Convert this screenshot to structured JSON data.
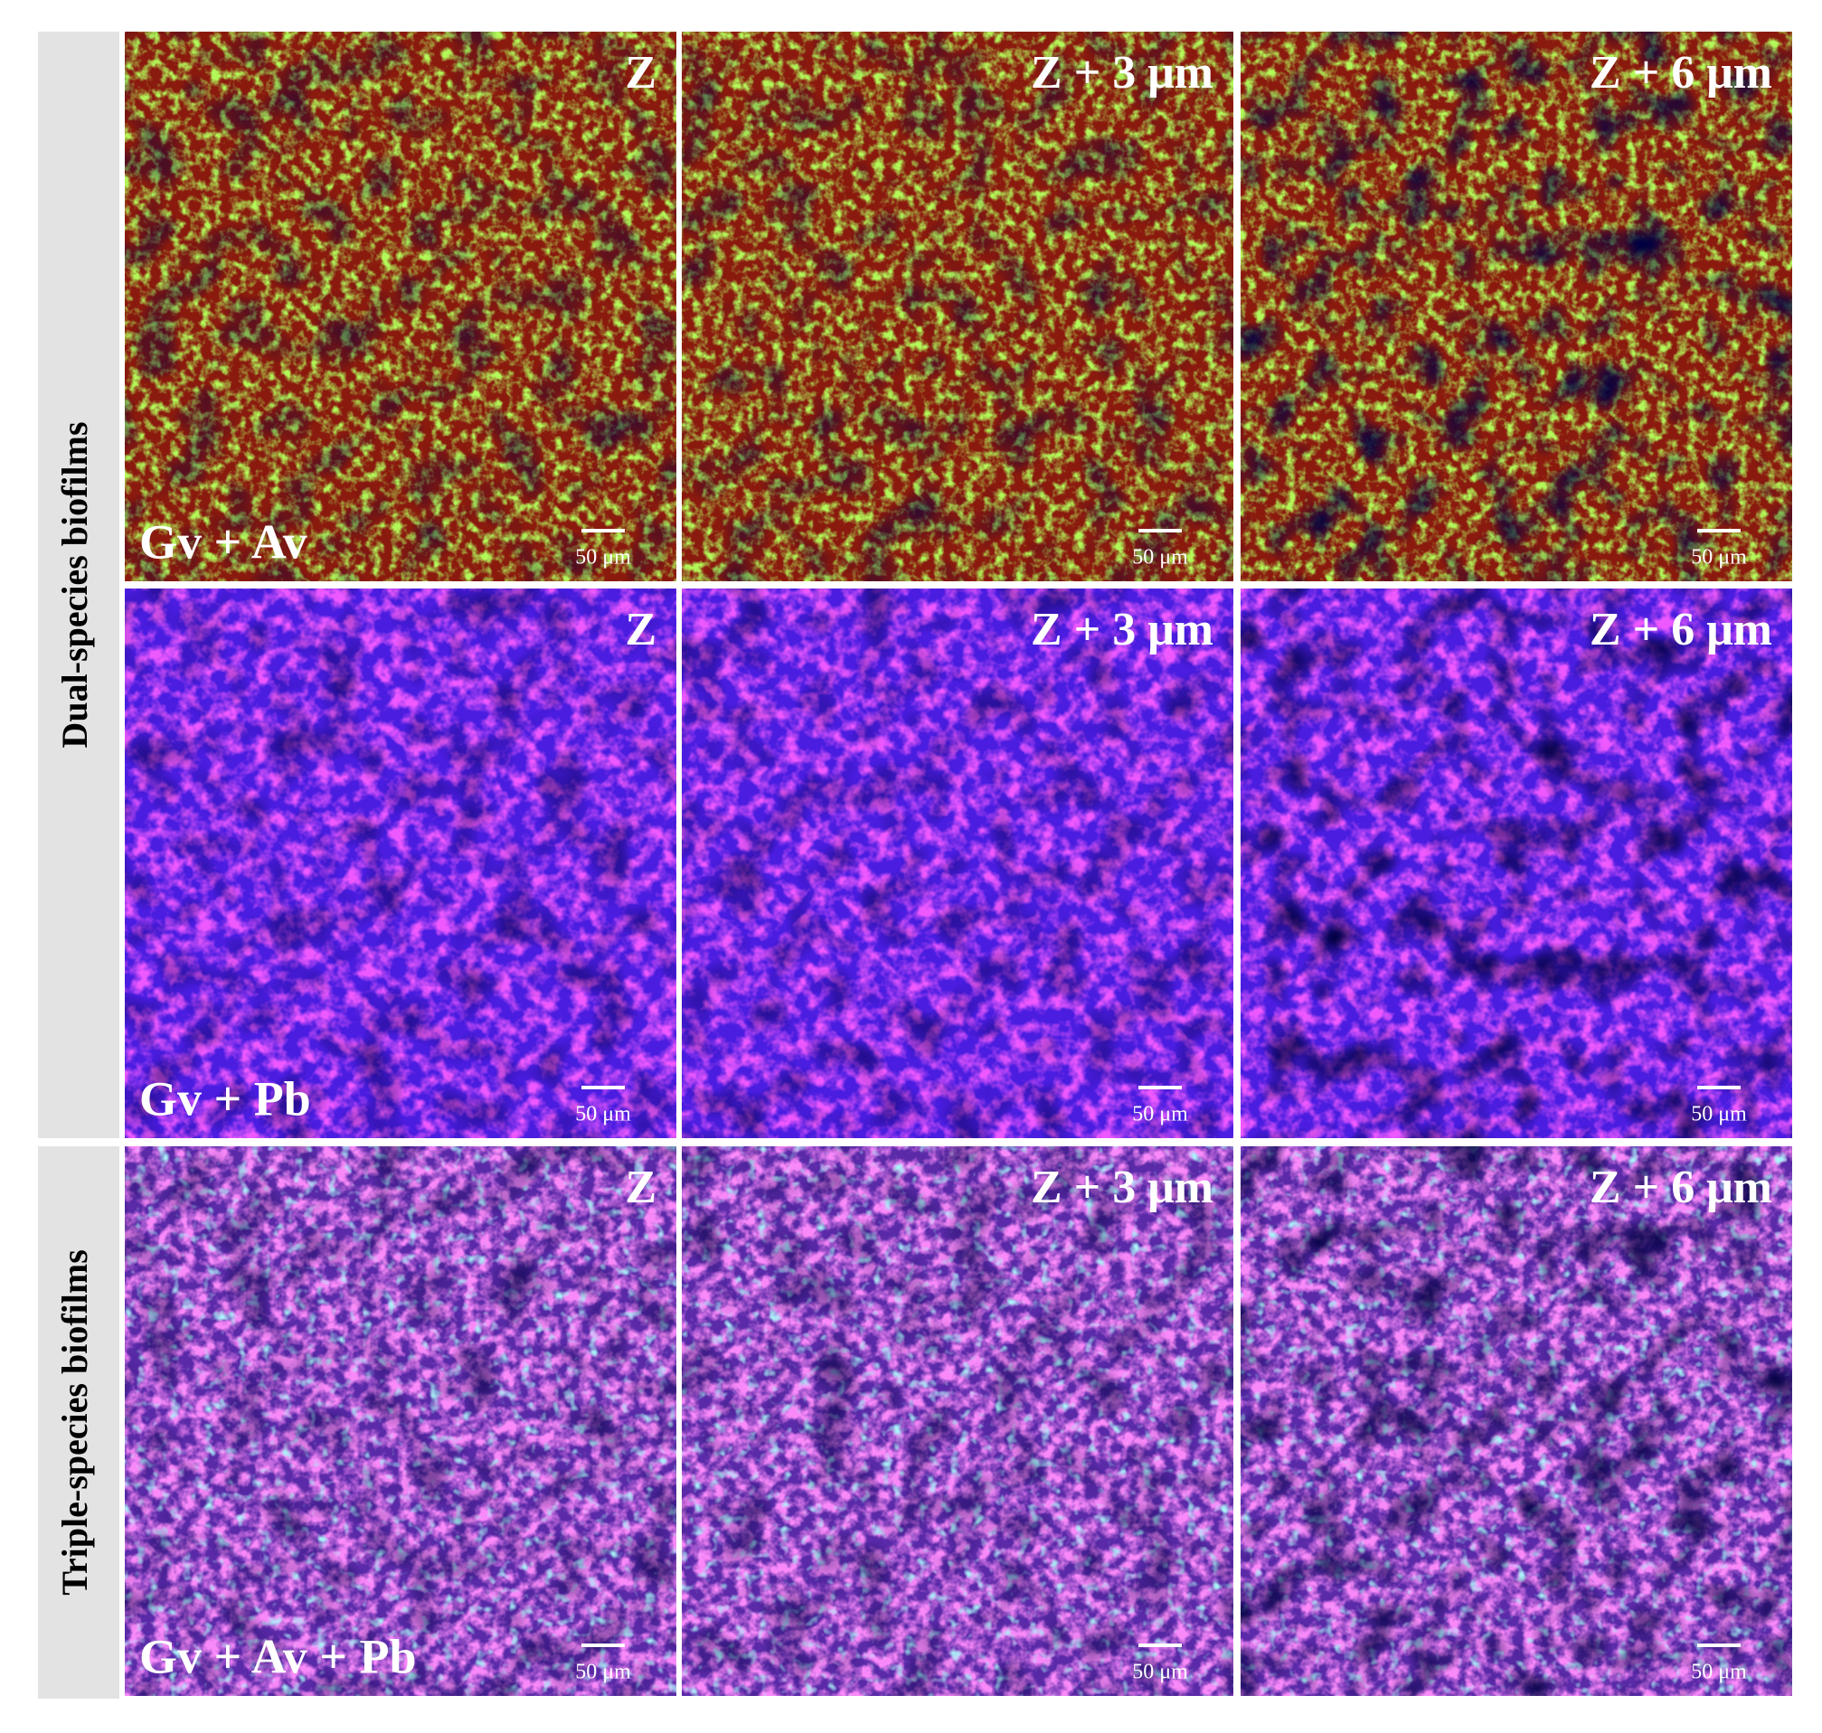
{
  "groups": [
    {
      "label": "Dual-species biofilms"
    },
    {
      "label": "Triple-species biofilms"
    }
  ],
  "rows": [
    {
      "species": "Gv + Av",
      "panels": [
        {
          "depth": "Z",
          "scale": "50 μm"
        },
        {
          "depth": "Z + 3 μm",
          "scale": "50 μm"
        },
        {
          "depth": "Z + 6 μm",
          "scale": "50 μm"
        }
      ]
    },
    {
      "species": "Gv + Pb",
      "panels": [
        {
          "depth": "Z",
          "scale": "50 μm"
        },
        {
          "depth": "Z + 3 μm",
          "scale": "50 μm"
        },
        {
          "depth": "Z + 6 μm",
          "scale": "50 μm"
        }
      ]
    },
    {
      "species": "Gv + Av + Pb",
      "panels": [
        {
          "depth": "Z",
          "scale": "50 μm"
        },
        {
          "depth": "Z + 3 μm",
          "scale": "50 μm"
        },
        {
          "depth": "Z + 6 μm",
          "scale": "50 μm"
        }
      ]
    }
  ]
}
